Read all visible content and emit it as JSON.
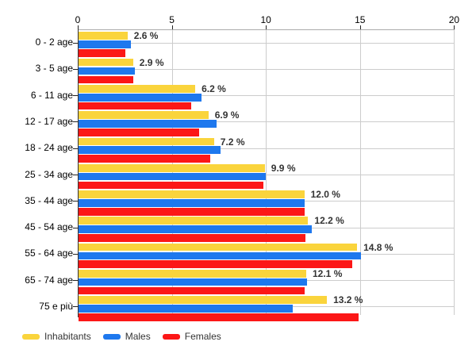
{
  "chart_data": {
    "type": "bar",
    "orientation": "horizontal",
    "title": "",
    "categories": [
      "0 - 2 age",
      "3 - 5 age",
      "6 - 11 age",
      "12 - 17 age",
      "18 - 24 age",
      "25 - 34 age",
      "35 - 44 age",
      "45 - 54 age",
      "55 - 64 age",
      "65 - 74 age",
      "75 e più"
    ],
    "series": [
      {
        "name": "Inhabitants",
        "color": "#FAD43C",
        "values": [
          2.6,
          2.9,
          6.2,
          6.9,
          7.2,
          9.9,
          12.0,
          12.2,
          14.8,
          12.1,
          13.2
        ]
      },
      {
        "name": "Males",
        "color": "#1E78EE",
        "values": [
          2.8,
          3.0,
          6.55,
          7.35,
          7.55,
          9.95,
          12.0,
          12.4,
          15.0,
          12.15,
          11.4
        ]
      },
      {
        "name": "Females",
        "color": "#FC1717",
        "values": [
          2.5,
          2.9,
          6.0,
          6.4,
          7.0,
          9.8,
          12.0,
          12.05,
          14.55,
          12.0,
          14.9
        ]
      }
    ],
    "value_labels": [
      "2.6 %",
      "2.9 %",
      "6.2 %",
      "6.9 %",
      "7.2 %",
      "9.9 %",
      "12.0 %",
      "12.2 %",
      "14.8 %",
      "12.1 %",
      "13.2 %"
    ],
    "x_ticks": [
      "0",
      "5",
      "10",
      "15",
      "20"
    ],
    "xlim": [
      0,
      20
    ],
    "xlabel": "",
    "ylabel": "",
    "grid": true,
    "legend_position": "bottom-left",
    "axis_color": "#333333",
    "grid_color": "#cccccc",
    "label_color": "#333333",
    "background": "#ffffff"
  }
}
